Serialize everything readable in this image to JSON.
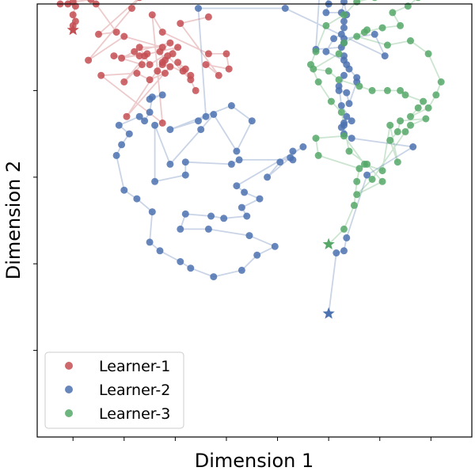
{
  "chart_data": {
    "type": "scatter",
    "title": "",
    "xlabel": "Dimension 1",
    "ylabel": "Dimension 2",
    "xlim": [
      -0.7,
      7.8
    ],
    "ylim": [
      -1.0,
      9.0
    ],
    "x_ticks": [
      0,
      1,
      2,
      3,
      4,
      5,
      6,
      7
    ],
    "y_ticks": [
      1,
      3,
      5,
      7
    ],
    "tick_labels_visible": false,
    "grid": false,
    "legend": {
      "position": "lower-left"
    },
    "series": [
      {
        "name": "Learner-1",
        "color": "#c44e52",
        "marker": "circle",
        "start_marker": "star",
        "points": [
          [
            0.0,
            8.4
          ],
          [
            0.0,
            8.5
          ],
          [
            0.05,
            8.6
          ],
          [
            0.0,
            8.75
          ],
          [
            0.05,
            8.95
          ],
          [
            -0.1,
            9.0
          ],
          [
            -0.25,
            9.0
          ],
          [
            0.35,
            9.1
          ],
          [
            0.0,
            9.05
          ],
          [
            0.4,
            9.3
          ],
          [
            -0.05,
            9.3
          ],
          [
            0.45,
            9.0
          ],
          [
            0.85,
            8.35
          ],
          [
            0.5,
            8.3
          ],
          [
            1.3,
            9.15
          ],
          [
            1.15,
            8.9
          ],
          [
            0.3,
            7.7
          ],
          [
            1.0,
            8.25
          ],
          [
            1.75,
            8.0
          ],
          [
            1.3,
            8.0
          ],
          [
            1.4,
            7.8
          ],
          [
            1.5,
            7.6
          ],
          [
            2.05,
            8.0
          ],
          [
            1.3,
            7.8
          ],
          [
            0.8,
            7.8
          ],
          [
            1.35,
            7.6
          ],
          [
            1.0,
            7.2
          ],
          [
            1.45,
            7.85
          ],
          [
            0.95,
            7.75
          ],
          [
            1.2,
            7.9
          ],
          [
            1.9,
            8.1
          ],
          [
            1.7,
            7.9
          ],
          [
            1.8,
            7.7
          ],
          [
            1.95,
            7.85
          ],
          [
            1.75,
            7.6
          ],
          [
            1.9,
            7.55
          ],
          [
            1.05,
            6.4
          ],
          [
            1.75,
            7.65
          ],
          [
            2.3,
            7.35
          ],
          [
            2.15,
            7.45
          ],
          [
            2.05,
            7.65
          ],
          [
            2.2,
            7.5
          ],
          [
            2.4,
            7.0
          ],
          [
            2.3,
            7.25
          ],
          [
            1.85,
            7.8
          ],
          [
            1.65,
            7.45
          ],
          [
            1.8,
            7.4
          ],
          [
            1.5,
            7.25
          ],
          [
            1.25,
            7.4
          ],
          [
            0.55,
            7.35
          ],
          [
            1.75,
            6.25
          ],
          [
            1.55,
            8.75
          ],
          [
            1.75,
            8.35
          ],
          [
            2.65,
            7.85
          ],
          [
            3.0,
            7.85
          ],
          [
            3.05,
            7.5
          ],
          [
            2.6,
            7.6
          ],
          [
            2.85,
            7.35
          ],
          [
            2.1,
            8.55
          ],
          [
            2.65,
            8.7
          ]
        ]
      },
      {
        "name": "Learner-2",
        "color": "#4c72b0",
        "marker": "circle",
        "start_marker": "star",
        "points": [
          [
            5.0,
            1.85
          ],
          [
            5.15,
            3.25
          ],
          [
            5.3,
            3.3
          ],
          [
            5.35,
            3.6
          ],
          [
            5.75,
            5.05
          ],
          [
            6.65,
            5.7
          ],
          [
            5.45,
            5.9
          ],
          [
            5.3,
            6.0
          ],
          [
            5.3,
            6.2
          ],
          [
            5.35,
            6.4
          ],
          [
            5.25,
            6.15
          ],
          [
            5.3,
            6.25
          ],
          [
            5.45,
            6.3
          ],
          [
            5.25,
            6.65
          ],
          [
            5.2,
            7.1
          ],
          [
            5.3,
            7.35
          ],
          [
            5.2,
            7.0
          ],
          [
            5.35,
            6.95
          ],
          [
            5.4,
            6.7
          ],
          [
            5.55,
            7.2
          ],
          [
            5.55,
            7.3
          ],
          [
            5.4,
            7.5
          ],
          [
            5.35,
            7.6
          ],
          [
            5.3,
            7.8
          ],
          [
            5.3,
            7.7
          ],
          [
            4.95,
            7.9
          ],
          [
            5.1,
            8.2
          ],
          [
            5.25,
            8.3
          ],
          [
            5.3,
            8.45
          ],
          [
            5.3,
            8.6
          ],
          [
            5.35,
            8.75
          ],
          [
            5.3,
            9.05
          ],
          [
            5.25,
            8.8
          ],
          [
            4.95,
            8.8
          ],
          [
            5.0,
            9.0
          ],
          [
            4.85,
            9.8
          ],
          [
            4.75,
            7.95
          ],
          [
            5.25,
            8.0
          ],
          [
            5.3,
            8.1
          ],
          [
            5.3,
            8.2
          ],
          [
            5.9,
            8.3
          ],
          [
            6.1,
            7.8
          ],
          [
            4.15,
            8.9
          ],
          [
            2.45,
            8.9
          ],
          [
            2.6,
            6.4
          ],
          [
            2.45,
            6.3
          ],
          [
            1.9,
            6.1
          ],
          [
            3.1,
            6.65
          ],
          [
            3.5,
            6.3
          ],
          [
            3.2,
            5.6
          ],
          [
            2.75,
            6.45
          ],
          [
            2.5,
            6.1
          ],
          [
            1.9,
            5.3
          ],
          [
            1.6,
            6.2
          ],
          [
            1.6,
            4.9
          ],
          [
            2.2,
            5.05
          ],
          [
            2.2,
            5.35
          ],
          [
            3.1,
            5.3
          ],
          [
            3.25,
            5.4
          ],
          [
            4.3,
            5.4
          ],
          [
            4.3,
            5.6
          ],
          [
            4.25,
            5.45
          ],
          [
            3.8,
            5.0
          ],
          [
            4.05,
            5.35
          ],
          [
            4.5,
            5.7
          ],
          [
            3.2,
            4.8
          ],
          [
            3.35,
            4.65
          ],
          [
            3.65,
            4.5
          ],
          [
            3.3,
            4.3
          ],
          [
            3.4,
            4.1
          ],
          [
            2.95,
            4.05
          ],
          [
            2.7,
            4.1
          ],
          [
            2.2,
            4.15
          ],
          [
            2.1,
            3.8
          ],
          [
            2.65,
            3.8
          ],
          [
            3.45,
            3.65
          ],
          [
            3.95,
            3.4
          ],
          [
            3.6,
            3.2
          ],
          [
            3.3,
            2.85
          ],
          [
            2.75,
            2.7
          ],
          [
            2.3,
            2.9
          ],
          [
            2.1,
            3.05
          ],
          [
            1.7,
            3.3
          ],
          [
            1.5,
            3.5
          ],
          [
            1.55,
            4.2
          ],
          [
            1.25,
            4.5
          ],
          [
            1.0,
            4.7
          ],
          [
            0.85,
            5.5
          ],
          [
            0.95,
            5.75
          ],
          [
            1.1,
            6.0
          ],
          [
            0.9,
            6.2
          ],
          [
            1.3,
            6.4
          ],
          [
            1.4,
            6.3
          ],
          [
            1.5,
            6.5
          ],
          [
            1.55,
            6.85
          ],
          [
            1.75,
            6.9
          ],
          [
            1.5,
            6.8
          ]
        ]
      },
      {
        "name": "Learner-3",
        "color": "#55a868",
        "marker": "circle",
        "start_marker": "star",
        "points": [
          [
            5.0,
            3.45
          ],
          [
            5.3,
            3.8
          ],
          [
            5.5,
            4.35
          ],
          [
            5.55,
            4.9
          ],
          [
            5.6,
            5.2
          ],
          [
            4.8,
            5.5
          ],
          [
            4.75,
            5.9
          ],
          [
            5.3,
            5.95
          ],
          [
            5.7,
            5.3
          ],
          [
            6.05,
            5.15
          ],
          [
            6.2,
            6.2
          ],
          [
            6.35,
            5.35
          ],
          [
            6.2,
            5.85
          ],
          [
            6.35,
            6.05
          ],
          [
            6.4,
            6.3
          ],
          [
            6.9,
            6.35
          ],
          [
            6.6,
            6.2
          ],
          [
            6.5,
            6.05
          ],
          [
            5.85,
            4.95
          ],
          [
            5.55,
            4.6
          ],
          [
            6.05,
            4.9
          ],
          [
            5.75,
            5.3
          ],
          [
            5.4,
            5.6
          ],
          [
            5.25,
            6.5
          ],
          [
            5.05,
            6.75
          ],
          [
            4.8,
            7.2
          ],
          [
            4.65,
            7.6
          ],
          [
            4.75,
            7.9
          ],
          [
            4.95,
            8.5
          ],
          [
            5.3,
            8.75
          ],
          [
            5.55,
            9.05
          ],
          [
            5.9,
            9.15
          ],
          [
            6.25,
            9.3
          ],
          [
            6.65,
            9.4
          ],
          [
            6.95,
            9.45
          ],
          [
            6.75,
            9.15
          ],
          [
            6.55,
            8.95
          ],
          [
            6.25,
            8.8
          ],
          [
            6.4,
            8.5
          ],
          [
            6.05,
            8.45
          ],
          [
            5.7,
            8.35
          ],
          [
            5.55,
            8.25
          ],
          [
            6.15,
            8.05
          ],
          [
            6.6,
            8.15
          ],
          [
            6.95,
            7.85
          ],
          [
            7.2,
            7.2
          ],
          [
            7.1,
            6.9
          ],
          [
            6.95,
            6.6
          ],
          [
            6.6,
            6.4
          ],
          [
            6.75,
            6.6
          ],
          [
            6.85,
            6.75
          ],
          [
            6.5,
            6.9
          ],
          [
            6.4,
            7.0
          ],
          [
            6.15,
            7.0
          ],
          [
            5.85,
            7.0
          ],
          [
            5.6,
            7.1
          ],
          [
            5.2,
            7.25
          ],
          [
            5.0,
            7.45
          ],
          [
            4.7,
            7.5
          ],
          [
            5.2,
            7.85
          ],
          [
            5.3,
            8.1
          ],
          [
            5.75,
            8.4
          ]
        ]
      }
    ]
  }
}
